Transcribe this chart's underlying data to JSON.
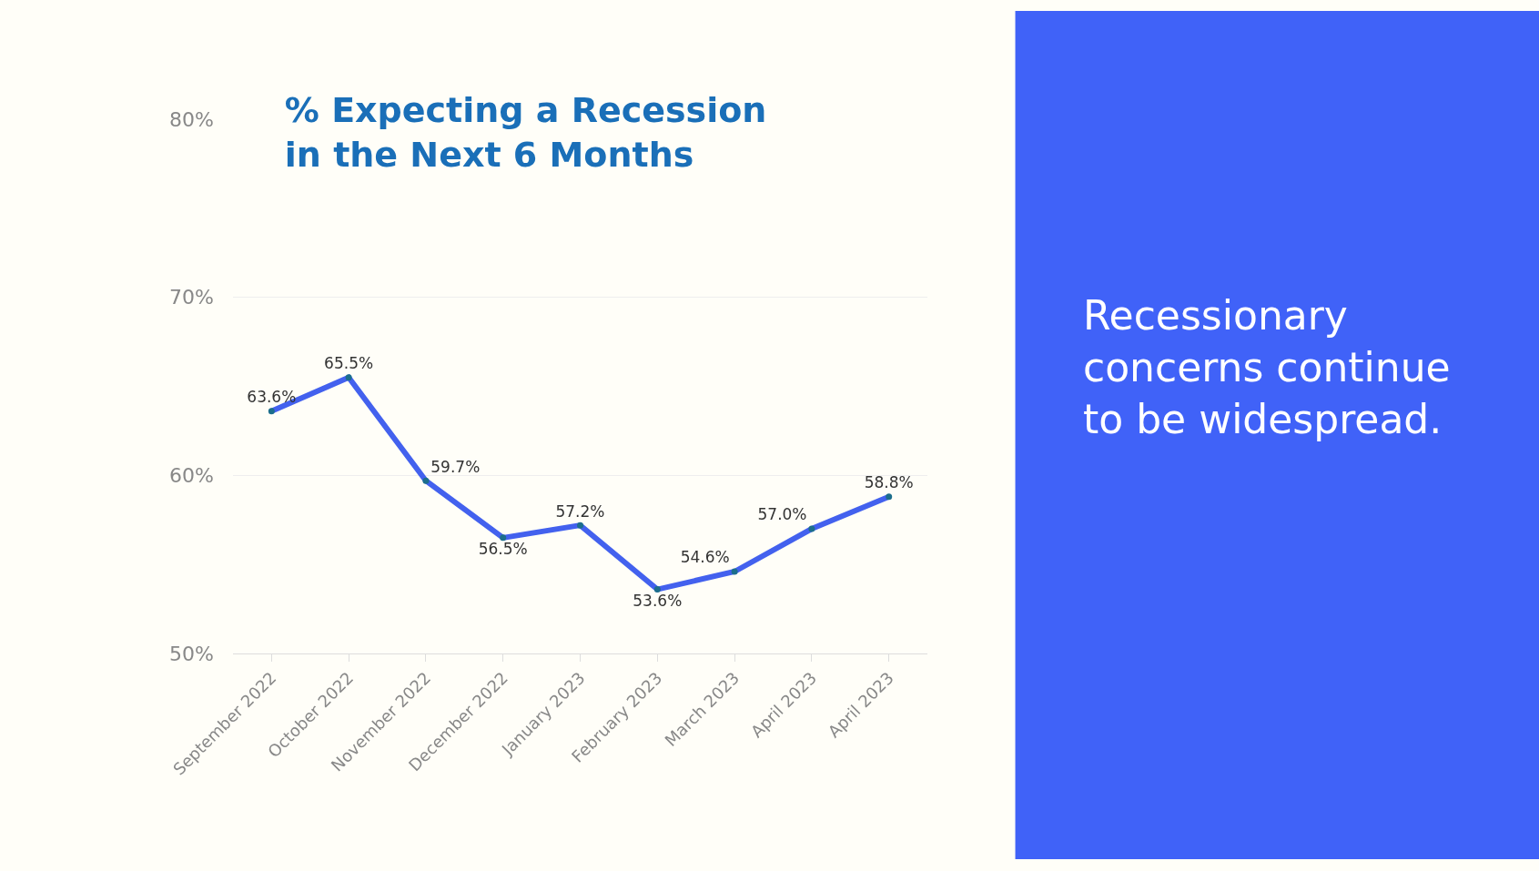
{
  "chart_data": {
    "type": "line",
    "title": "% Expecting a Recession\nin the Next 6 Months",
    "categories": [
      "September 2022",
      "October 2022",
      "November 2022",
      "December 2022",
      "January 2023",
      "February 2023",
      "March 2023",
      "April 2023",
      "April 2023"
    ],
    "series": [
      {
        "color": "#4361ee",
        "values": [
          63.6,
          65.5,
          59.7,
          56.5,
          57.2,
          53.6,
          54.6,
          57.0,
          58.8
        ],
        "value_labels": [
          "63.6%",
          "65.5%",
          "59.7%",
          "56.5%",
          "57.2%",
          "53.6%",
          "54.6%",
          "57.0%",
          "58.8%"
        ]
      }
    ],
    "ylim": [
      50,
      80
    ],
    "yticks": [
      {
        "value": 50,
        "label": "50%"
      },
      {
        "value": 60,
        "label": "60%"
      },
      {
        "value": 70,
        "label": "70%"
      },
      {
        "value": 80,
        "label": "80%"
      }
    ],
    "grid": "y",
    "marker": "circle",
    "line_style": "solid",
    "legend": false,
    "annotations": [
      "Recessionary\nconcerns continue\nto be widespread."
    ]
  }
}
